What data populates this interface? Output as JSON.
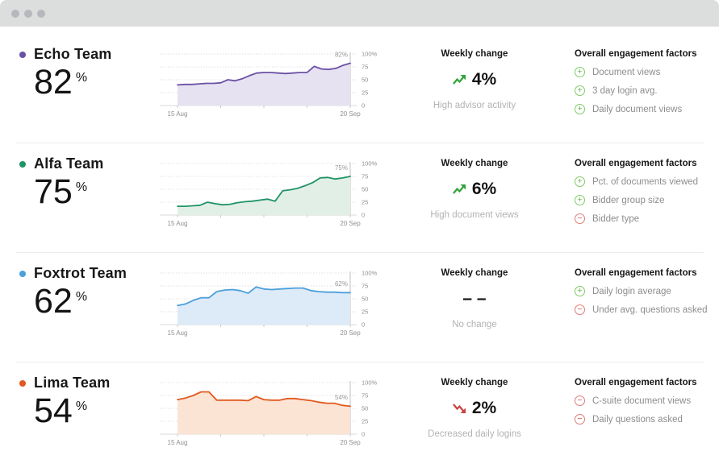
{
  "rows": [
    {
      "team": "Echo Team",
      "score": "82",
      "unit": "%",
      "weekly": {
        "title": "Weekly change",
        "trend": "up",
        "value": "4%",
        "subtitle": "High advisor activity"
      },
      "factors": {
        "title": "Overall engagement factors",
        "items": [
          {
            "sign": "plus",
            "label": "Document views"
          },
          {
            "sign": "plus",
            "label": "3 day login avg."
          },
          {
            "sign": "plus",
            "label": "Daily document views"
          }
        ]
      }
    },
    {
      "team": "Alfa Team",
      "score": "75",
      "unit": "%",
      "weekly": {
        "title": "Weekly change",
        "trend": "up",
        "value": "6%",
        "subtitle": "High document views"
      },
      "factors": {
        "title": "Overall engagement factors",
        "items": [
          {
            "sign": "plus",
            "label": "Pct. of documents viewed"
          },
          {
            "sign": "plus",
            "label": "Bidder group size"
          },
          {
            "sign": "minus",
            "label": "Bidder type"
          }
        ]
      }
    },
    {
      "team": "Foxtrot Team",
      "score": "62",
      "unit": "%",
      "weekly": {
        "title": "Weekly change",
        "trend": "none",
        "value": "– –",
        "subtitle": "No change"
      },
      "factors": {
        "title": "Overall engagement factors",
        "items": [
          {
            "sign": "plus",
            "label": "Daily login average"
          },
          {
            "sign": "minus",
            "label": "Under avg. questions asked"
          }
        ]
      }
    },
    {
      "team": "Lima Team",
      "score": "54",
      "unit": "%",
      "weekly": {
        "title": "Weekly change",
        "trend": "down",
        "value": "2%",
        "subtitle": "Decreased daily logins"
      },
      "factors": {
        "title": "Overall engagement factors",
        "items": [
          {
            "sign": "minus",
            "label": "C-suite document views"
          },
          {
            "sign": "minus",
            "label": "Daily questions asked"
          }
        ]
      }
    }
  ],
  "chart_data": [
    {
      "type": "line",
      "team": "Echo Team",
      "x_start": "15 Aug",
      "x_end": "20 Sep",
      "ylim": [
        0,
        100
      ],
      "y_ticks": [
        "100%",
        "75",
        "50",
        "25",
        "0"
      ],
      "values": [
        40,
        41,
        41,
        42,
        43,
        43,
        44,
        50,
        48,
        52,
        58,
        63,
        64,
        64,
        63,
        62,
        63,
        64,
        64,
        76,
        71,
        70,
        72,
        78,
        82
      ],
      "end_label": "82%",
      "color": "#6b51a5",
      "fill": "#e7e2f2"
    },
    {
      "type": "line",
      "team": "Alfa Team",
      "x_start": "15 Aug",
      "x_end": "20 Sep",
      "ylim": [
        0,
        100
      ],
      "y_ticks": [
        "100%",
        "75",
        "50",
        "25",
        "0"
      ],
      "values": [
        17,
        17,
        18,
        19,
        25,
        22,
        20,
        21,
        24,
        26,
        27,
        29,
        31,
        27,
        47,
        49,
        52,
        57,
        63,
        72,
        73,
        70,
        72,
        75
      ],
      "end_label": "75%",
      "color": "#1f9467",
      "fill": "#e2efe7"
    },
    {
      "type": "line",
      "team": "Foxtrot Team",
      "x_start": "15 Aug",
      "x_end": "20 Sep",
      "ylim": [
        0,
        100
      ],
      "y_ticks": [
        "100%",
        "75",
        "50",
        "25",
        "0"
      ],
      "values": [
        37,
        40,
        47,
        52,
        52,
        64,
        67,
        68,
        66,
        61,
        73,
        69,
        68,
        69,
        70,
        71,
        71,
        66,
        64,
        63,
        63,
        62,
        62
      ],
      "end_label": "62%",
      "color": "#4c9fda",
      "fill": "#ddeaf8"
    },
    {
      "type": "line",
      "team": "Lima Team",
      "x_start": "15 Aug",
      "x_end": "20 Sep",
      "ylim": [
        0,
        100
      ],
      "y_ticks": [
        "100%",
        "75",
        "50",
        "25",
        "0"
      ],
      "values": [
        67,
        70,
        75,
        82,
        82,
        66,
        66,
        66,
        66,
        65,
        73,
        67,
        66,
        66,
        69,
        69,
        67,
        65,
        62,
        60,
        60,
        56,
        54
      ],
      "end_label": "54%",
      "color": "#e2581e",
      "fill": "#fbe4d4"
    }
  ]
}
